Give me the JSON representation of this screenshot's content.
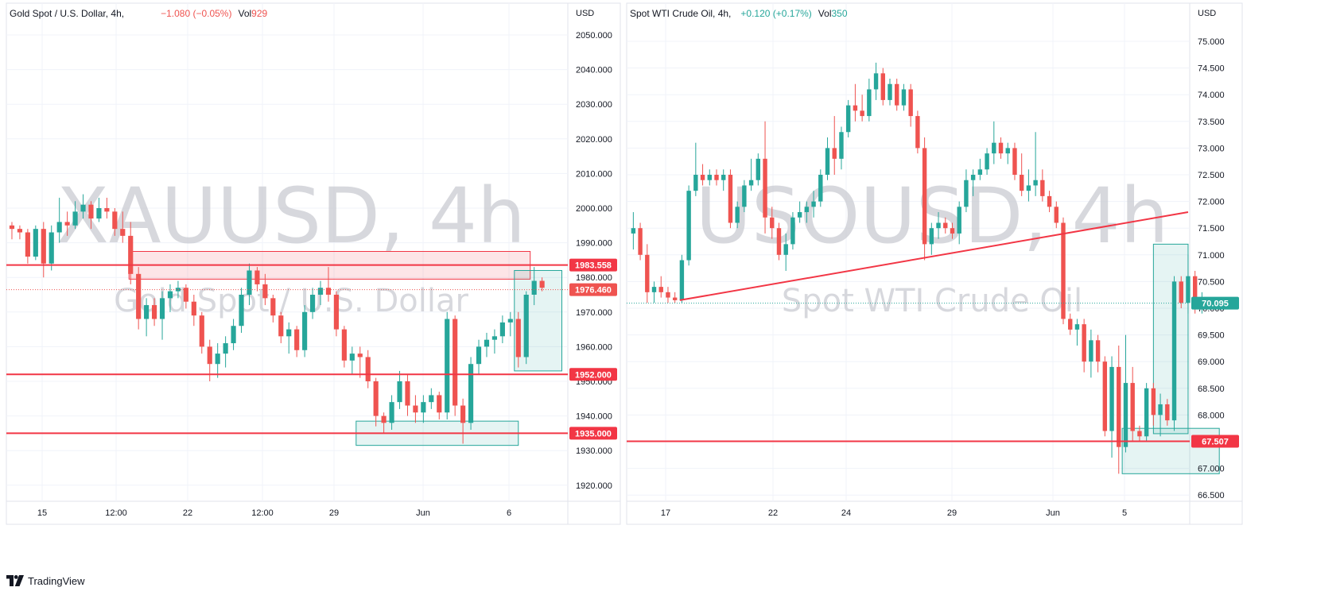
{
  "colors": {
    "up": "#26a69a",
    "down": "#ef5350",
    "level": "#f23645",
    "grid": "#f0f3fa",
    "axis_text": "#131722",
    "watermark": "#c9cbd1",
    "zone_red_fill": "rgba(242,54,69,0.13)",
    "zone_green_fill": "rgba(38,166,154,0.12)"
  },
  "brand": {
    "name": "TradingView",
    "icon": "tradingview-logo-icon"
  },
  "charts": [
    {
      "header": {
        "name": "Gold Spot / U.S. Dollar, 4h,",
        "change": "−1.080 (−0.05%)",
        "vol_label": "Vol",
        "vol_value": "929",
        "change_color": "#ef5350"
      },
      "watermark": {
        "symbol": "XAUUSD, 4h",
        "description": "Gold Spot / U.S. Dollar"
      },
      "currency": "USD",
      "xticks": [
        "15",
        "12:00",
        "22",
        "12:00",
        "29",
        "Jun",
        "6"
      ],
      "yticks": [
        "2050.000",
        "2040.000",
        "2030.000",
        "2020.000",
        "2010.000",
        "2000.000",
        "1990.000",
        "1980.000",
        "1970.000",
        "1960.000",
        "1950.000",
        "1940.000",
        "1930.000",
        "1920.000"
      ],
      "price_labels": [
        "1983.558",
        "1976.460",
        "1952.000",
        "1935.000"
      ]
    },
    {
      "header": {
        "name": "Spot WTI Crude Oil, 4h,",
        "change": "+0.120 (+0.17%)",
        "vol_label": "Vol",
        "vol_value": "350",
        "change_color": "#26a69a"
      },
      "watermark": {
        "symbol": "USOUSD, 4h",
        "description": "Spot WTI Crude Oil"
      },
      "currency": "USD",
      "xticks": [
        "17",
        "22",
        "24",
        "29",
        "Jun",
        "5"
      ],
      "yticks": [
        "75.000",
        "74.500",
        "74.000",
        "73.500",
        "73.000",
        "72.500",
        "72.000",
        "71.500",
        "71.000",
        "70.500",
        "70.000",
        "69.500",
        "69.000",
        "68.500",
        "68.000",
        "67.500",
        "67.000",
        "66.500"
      ],
      "price_labels": [
        "70.095",
        "67.507"
      ]
    }
  ],
  "chart_data": [
    {
      "type": "candlestick",
      "symbol": "XAUUSD",
      "interval": "4h",
      "ylim": [
        1915,
        2055
      ],
      "levels": [
        1983.558,
        1952.0,
        1935.0
      ],
      "last_price": 1976.46,
      "zones": [
        {
          "from": 15.3,
          "to": 66,
          "low": 1979.5,
          "high": 1987.5,
          "color": "red"
        },
        {
          "from": 44,
          "to": 64.5,
          "low": 1931.5,
          "high": 1938.5,
          "color": "green"
        },
        {
          "from": 64,
          "to": 70,
          "low": 1953.0,
          "high": 1982.0,
          "color": "green"
        }
      ],
      "candles": [
        [
          1995,
          1996,
          1991,
          1994
        ],
        [
          1994,
          1995,
          1991,
          1993
        ],
        [
          1993,
          1994,
          1984,
          1986
        ],
        [
          1986,
          1995,
          1985,
          1994
        ],
        [
          1994,
          1996,
          1980,
          1984
        ],
        [
          1984,
          1995,
          1982,
          1993
        ],
        [
          1993,
          2003,
          1990,
          1996
        ],
        [
          1996,
          1999,
          1992,
          1995
        ],
        [
          1995,
          2002,
          1994,
          1999
        ],
        [
          1999,
          2004,
          1997,
          2001
        ],
        [
          2001,
          2002,
          1994,
          1997
        ],
        [
          1997,
          2003,
          1996,
          2000
        ],
        [
          2000,
          2003,
          1997,
          1999
        ],
        [
          1999,
          2000,
          1992,
          1994
        ],
        [
          1994,
          1999,
          1990,
          1992
        ],
        [
          1992,
          1996,
          1978,
          1981
        ],
        [
          1981,
          1983,
          1965,
          1968
        ],
        [
          1968,
          1974,
          1963,
          1972
        ],
        [
          1972,
          1974,
          1966,
          1968
        ],
        [
          1968,
          1976,
          1962,
          1974
        ],
        [
          1974,
          1978,
          1970,
          1976
        ],
        [
          1976,
          1979,
          1974,
          1977
        ],
        [
          1977,
          1978,
          1971,
          1973
        ],
        [
          1973,
          1975,
          1966,
          1969
        ],
        [
          1969,
          1970,
          1958,
          1960
        ],
        [
          1960,
          1962,
          1950,
          1955
        ],
        [
          1955,
          1961,
          1951,
          1958
        ],
        [
          1958,
          1963,
          1954,
          1961
        ],
        [
          1961,
          1968,
          1959,
          1966
        ],
        [
          1966,
          1977,
          1964,
          1975
        ],
        [
          1975,
          1984,
          1972,
          1982
        ],
        [
          1982,
          1983,
          1976,
          1978
        ],
        [
          1978,
          1981,
          1972,
          1974
        ],
        [
          1974,
          1975,
          1967,
          1969
        ],
        [
          1969,
          1970,
          1961,
          1963
        ],
        [
          1963,
          1967,
          1958,
          1965
        ],
        [
          1965,
          1966,
          1957,
          1959
        ],
        [
          1959,
          1972,
          1957,
          1970
        ],
        [
          1970,
          1977,
          1968,
          1975
        ],
        [
          1975,
          1979,
          1972,
          1977
        ],
        [
          1977,
          1983,
          1973,
          1975
        ],
        [
          1975,
          1976,
          1963,
          1965
        ],
        [
          1965,
          1966,
          1954,
          1956
        ],
        [
          1956,
          1960,
          1952,
          1958
        ],
        [
          1958,
          1960,
          1951,
          1957
        ],
        [
          1957,
          1959,
          1948,
          1950
        ],
        [
          1950,
          1951,
          1937,
          1940
        ],
        [
          1940,
          1941,
          1935,
          1938
        ],
        [
          1938,
          1946,
          1936,
          1944
        ],
        [
          1944,
          1953,
          1942,
          1950
        ],
        [
          1950,
          1952,
          1940,
          1943
        ],
        [
          1943,
          1946,
          1938,
          1941
        ],
        [
          1941,
          1946,
          1938,
          1944
        ],
        [
          1944,
          1948,
          1942,
          1946
        ],
        [
          1946,
          1947,
          1939,
          1941
        ],
        [
          1941,
          1970,
          1939,
          1968
        ],
        [
          1968,
          1969,
          1940,
          1943
        ],
        [
          1943,
          1945,
          1932,
          1938
        ],
        [
          1938,
          1957,
          1936,
          1955
        ],
        [
          1955,
          1962,
          1952,
          1960
        ],
        [
          1960,
          1964,
          1957,
          1962
        ],
        [
          1962,
          1965,
          1958,
          1963
        ],
        [
          1963,
          1969,
          1961,
          1967
        ],
        [
          1967,
          1970,
          1963,
          1968
        ],
        [
          1968,
          1970,
          1954,
          1957
        ],
        [
          1957,
          1976,
          1955,
          1975
        ],
        [
          1975,
          1983,
          1972,
          1979
        ],
        [
          1979,
          1980,
          1976,
          1977
        ]
      ]
    },
    {
      "type": "candlestick",
      "symbol": "USOUSD",
      "interval": "4h",
      "ylim": [
        66.4,
        75.25
      ],
      "levels": [
        67.507
      ],
      "last_price": 70.095,
      "trendline": [
        [
          7.2,
          70.15
        ],
        [
          80.5,
          71.8
        ]
      ],
      "zones": [
        {
          "from": 71,
          "to": 85,
          "low": 66.9,
          "high": 67.75,
          "color": "green"
        },
        {
          "from": 75.5,
          "to": 80.5,
          "low": 67.65,
          "high": 71.2,
          "color": "green"
        }
      ],
      "candles": [
        [
          71.4,
          71.8,
          71.1,
          71.5
        ],
        [
          71.5,
          71.6,
          70.9,
          71.0
        ],
        [
          71.0,
          71.2,
          70.1,
          70.3
        ],
        [
          70.3,
          70.5,
          70.1,
          70.4
        ],
        [
          70.4,
          70.6,
          70.2,
          70.3
        ],
        [
          70.3,
          70.4,
          70.1,
          70.2
        ],
        [
          70.2,
          70.3,
          70.1,
          70.15
        ],
        [
          70.15,
          71.0,
          70.1,
          70.9
        ],
        [
          70.9,
          72.3,
          70.8,
          72.2
        ],
        [
          72.2,
          73.1,
          72.1,
          72.5
        ],
        [
          72.5,
          72.7,
          72.3,
          72.4
        ],
        [
          72.4,
          72.6,
          72.3,
          72.5
        ],
        [
          72.5,
          72.6,
          72.3,
          72.4
        ],
        [
          72.4,
          72.6,
          72.2,
          72.5
        ],
        [
          72.5,
          72.6,
          71.5,
          71.6
        ],
        [
          71.6,
          72.0,
          71.5,
          71.9
        ],
        [
          71.9,
          72.4,
          71.8,
          72.3
        ],
        [
          72.3,
          72.8,
          72.2,
          72.4
        ],
        [
          72.4,
          72.9,
          72.3,
          72.8
        ],
        [
          72.8,
          73.5,
          71.4,
          71.7
        ],
        [
          71.7,
          71.9,
          71.3,
          71.5
        ],
        [
          71.5,
          71.6,
          70.9,
          71.0
        ],
        [
          71.0,
          71.4,
          70.7,
          71.2
        ],
        [
          71.2,
          71.8,
          71.1,
          71.7
        ],
        [
          71.7,
          72.0,
          71.6,
          71.8
        ],
        [
          71.8,
          72.0,
          71.6,
          71.9
        ],
        [
          71.9,
          72.2,
          71.7,
          72.0
        ],
        [
          72.0,
          72.6,
          71.9,
          72.5
        ],
        [
          72.5,
          73.2,
          72.4,
          73.0
        ],
        [
          73.0,
          73.6,
          72.5,
          72.8
        ],
        [
          72.8,
          73.4,
          72.6,
          73.3
        ],
        [
          73.3,
          73.9,
          73.2,
          73.8
        ],
        [
          73.8,
          74.2,
          73.5,
          73.7
        ],
        [
          73.7,
          74.0,
          73.5,
          73.6
        ],
        [
          73.6,
          74.3,
          73.5,
          74.1
        ],
        [
          74.1,
          74.6,
          73.9,
          74.4
        ],
        [
          74.4,
          74.5,
          73.8,
          73.9
        ],
        [
          73.9,
          74.3,
          73.8,
          74.2
        ],
        [
          74.2,
          74.3,
          73.7,
          73.8
        ],
        [
          73.8,
          74.2,
          73.7,
          74.1
        ],
        [
          74.1,
          74.2,
          73.4,
          73.6
        ],
        [
          73.6,
          73.7,
          72.9,
          73.0
        ],
        [
          73.0,
          73.2,
          70.9,
          71.2
        ],
        [
          71.2,
          71.6,
          71.0,
          71.5
        ],
        [
          71.5,
          71.8,
          71.3,
          71.6
        ],
        [
          71.6,
          71.7,
          71.4,
          71.5
        ],
        [
          71.5,
          71.6,
          71.3,
          71.4
        ],
        [
          71.4,
          72.0,
          71.2,
          71.9
        ],
        [
          71.9,
          72.6,
          71.8,
          72.4
        ],
        [
          72.4,
          72.6,
          72.1,
          72.5
        ],
        [
          72.5,
          72.8,
          72.4,
          72.6
        ],
        [
          72.6,
          73.0,
          72.5,
          72.9
        ],
        [
          72.9,
          73.5,
          72.7,
          73.1
        ],
        [
          73.1,
          73.2,
          72.8,
          72.9
        ],
        [
          72.9,
          73.1,
          72.7,
          73.0
        ],
        [
          73.0,
          73.1,
          72.4,
          72.5
        ],
        [
          72.5,
          72.9,
          72.1,
          72.2
        ],
        [
          72.2,
          72.6,
          72.0,
          72.3
        ],
        [
          72.3,
          73.3,
          72.1,
          72.4
        ],
        [
          72.4,
          72.6,
          72.0,
          72.1
        ],
        [
          72.1,
          72.2,
          71.8,
          71.9
        ],
        [
          71.9,
          72.0,
          71.5,
          71.6
        ],
        [
          71.6,
          71.7,
          69.7,
          69.8
        ],
        [
          69.8,
          69.9,
          69.5,
          69.6
        ],
        [
          69.6,
          69.8,
          69.3,
          69.7
        ],
        [
          69.7,
          69.8,
          68.8,
          69.0
        ],
        [
          69.0,
          69.6,
          68.7,
          69.4
        ],
        [
          69.4,
          69.5,
          68.8,
          69.0
        ],
        [
          69.0,
          69.1,
          67.6,
          67.7
        ],
        [
          67.7,
          69.1,
          67.2,
          68.9
        ],
        [
          68.9,
          69.3,
          66.9,
          67.4
        ],
        [
          67.4,
          69.5,
          67.3,
          68.6
        ],
        [
          68.6,
          68.9,
          67.5,
          67.7
        ],
        [
          67.7,
          67.8,
          67.5,
          67.6
        ],
        [
          67.6,
          68.6,
          67.5,
          68.5
        ],
        [
          68.5,
          68.6,
          67.8,
          68.0
        ],
        [
          68.0,
          68.4,
          67.6,
          68.2
        ],
        [
          68.2,
          68.3,
          67.8,
          67.9
        ],
        [
          67.9,
          70.6,
          67.7,
          70.5
        ],
        [
          70.5,
          70.6,
          70.0,
          70.1
        ],
        [
          70.1,
          71.0,
          69.9,
          70.6
        ],
        [
          70.6,
          70.7,
          69.9,
          70.0
        ],
        [
          70.0,
          70.3,
          69.9,
          70.1
        ]
      ]
    }
  ]
}
